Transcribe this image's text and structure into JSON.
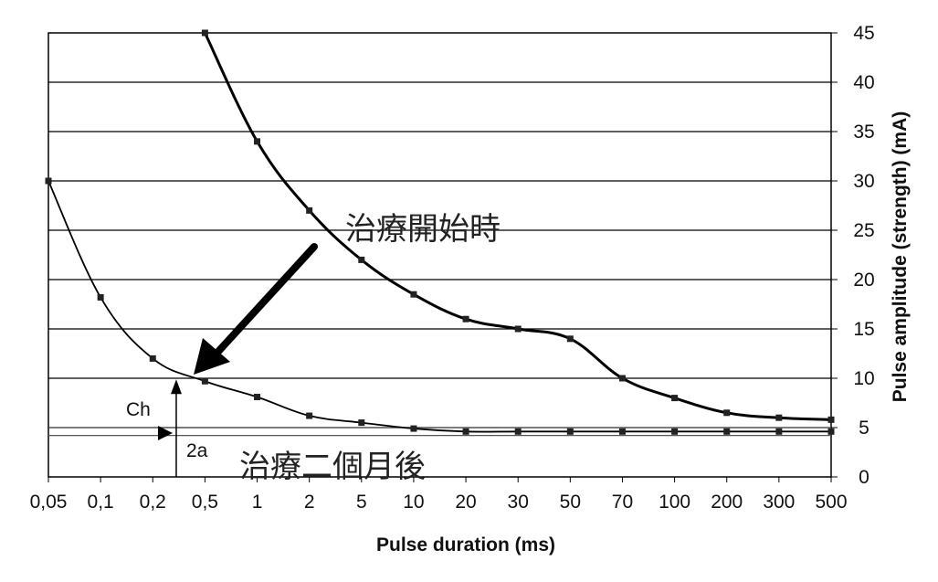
{
  "chart_data": {
    "type": "line",
    "x_scale": "categorical",
    "categories": [
      "0,05",
      "0,1",
      "0,2",
      "0,5",
      "1",
      "2",
      "5",
      "10",
      "20",
      "30",
      "50",
      "70",
      "100",
      "200",
      "300",
      "500"
    ],
    "xlabel": "Pulse duration (ms)",
    "ylabel": "Pulse amplitude (strength) (mA)",
    "y_axis_side": "right",
    "ylim": [
      0,
      45
    ],
    "yticks": [
      0,
      5,
      10,
      15,
      20,
      25,
      30,
      35,
      40,
      45
    ],
    "grid": "horizontal",
    "series": [
      {
        "values": [
          null,
          null,
          null,
          45,
          34,
          27,
          22,
          18.5,
          16,
          15,
          14,
          10,
          8,
          6.5,
          6,
          5.8
        ],
        "marker": "square",
        "color": "#000000"
      },
      {
        "values": [
          30,
          18.2,
          12,
          9.7,
          8.1,
          6.2,
          5.5,
          4.9,
          4.6,
          4.6,
          4.6,
          4.6,
          4.6,
          4.6,
          4.6,
          4.6
        ],
        "marker": "square",
        "color": "#000000"
      }
    ],
    "reference_lines": [
      {
        "y": 5.0
      },
      {
        "y": 4.2
      }
    ],
    "annotations": {
      "start_treatment": "治療開始時",
      "after_two_months": "治療二個月後",
      "chronaxie": "Ch",
      "double_rheobase": "2a",
      "chronaxie_x_index": 2.45,
      "chronaxie_y": 9.7
    }
  }
}
